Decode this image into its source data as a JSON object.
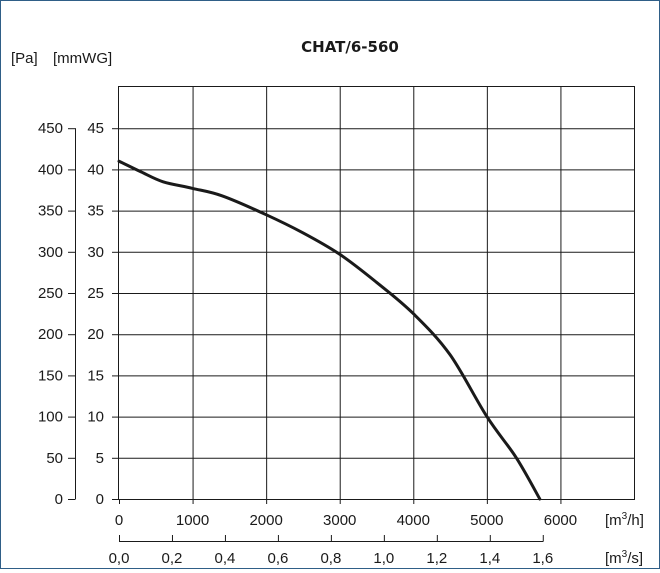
{
  "chart_data": {
    "type": "line",
    "title": "CHAT/6-560",
    "y_axis_pa": {
      "label": "[Pa]",
      "ticks": [
        0,
        50,
        100,
        150,
        200,
        250,
        300,
        350,
        400,
        450
      ],
      "range": [
        0,
        500
      ]
    },
    "y_axis_mmwg": {
      "label": "[mmWG]",
      "ticks": [
        0,
        5,
        10,
        15,
        20,
        25,
        30,
        35,
        40,
        45
      ],
      "range": [
        0,
        50
      ]
    },
    "x_axis_m3h": {
      "label": "[m³/h]",
      "ticks": [
        0,
        1000,
        2000,
        3000,
        4000,
        5000,
        6000
      ],
      "range": [
        0,
        7000
      ]
    },
    "x_axis_m3s": {
      "label": "[m³/s]",
      "ticks": [
        "0,0",
        "0,2",
        "0,4",
        "0,6",
        "0,8",
        "1,0",
        "1,2",
        "1,4",
        "1,6"
      ],
      "tick_values": [
        0,
        0.2,
        0.4,
        0.6,
        0.8,
        1.0,
        1.2,
        1.4,
        1.6
      ]
    },
    "grid": true,
    "series": [
      {
        "x_m3h": [
          0,
          300,
          600,
          1000,
          1400,
          2000,
          2500,
          3000,
          3500,
          4000,
          4500,
          5000,
          5400,
          5720
        ],
        "y_pa": [
          410,
          397,
          385,
          377,
          368,
          345,
          323,
          297,
          263,
          225,
          175,
          100,
          50,
          0
        ]
      }
    ]
  }
}
